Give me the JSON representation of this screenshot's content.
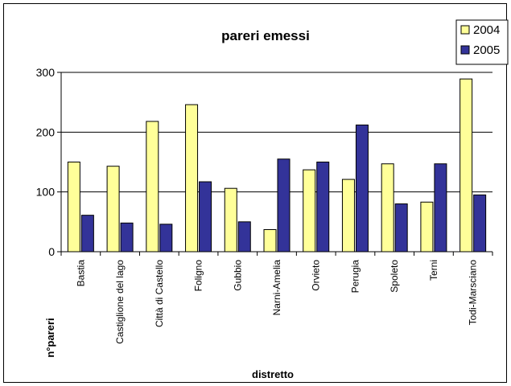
{
  "chart_data": {
    "type": "bar",
    "title": "pareri emessi",
    "xlabel": "distretto",
    "ylabel": "n°pareri",
    "ylim": [
      0,
      300
    ],
    "yticks": [
      "0",
      "100",
      "200",
      "300"
    ],
    "grid": true,
    "legend_position": "top-right",
    "categories": [
      "Bastia",
      "Castiglione del lago",
      "Città di Castello",
      "Foligno",
      "Gubbio",
      "Narni-Amelia",
      "Orvieto",
      "Perugia",
      "Spoleto",
      "Terni",
      "Todi-Marsciano"
    ],
    "series": [
      {
        "name": "2004",
        "color": "#FFFF99",
        "values": [
          150,
          143,
          218,
          246,
          106,
          37,
          137,
          121,
          147,
          83,
          289
        ]
      },
      {
        "name": "2005",
        "color": "#333399",
        "values": [
          61,
          48,
          46,
          117,
          50,
          155,
          150,
          212,
          80,
          147,
          95
        ]
      }
    ]
  }
}
